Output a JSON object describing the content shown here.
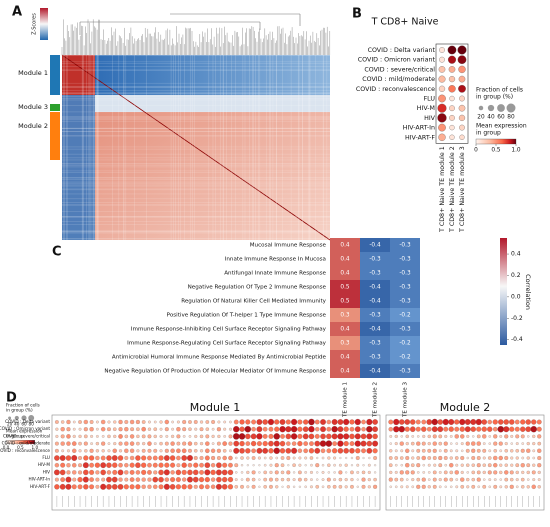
{
  "panel_labels": [
    "A",
    "B",
    "C",
    "D"
  ],
  "panel_a": {
    "colorbar_label": "Z-Scores",
    "modules": [
      "Module 1",
      "Module 3",
      "Module 2"
    ]
  },
  "panel_b": {
    "title": "T CD8+ Naive",
    "rows": [
      "COVID : Delta variant",
      "COVID : Omicron variant",
      "COVID : severe/critical",
      "COVID : mild/moderate",
      "COVID : reconvalescence",
      "FLU",
      "HIV-M",
      "HIV",
      "HIV-ART-In",
      "HIV-ART-F"
    ],
    "columns": [
      "T CD8+ Naive TE module 1",
      "T CD8+ Naive TE module 2",
      "T CD8+ Naive TE module 3"
    ],
    "fraction": [
      [
        30,
        70,
        75
      ],
      [
        30,
        60,
        70
      ],
      [
        40,
        40,
        50
      ],
      [
        45,
        35,
        40
      ],
      [
        35,
        50,
        55
      ],
      [
        55,
        25,
        30
      ],
      [
        75,
        30,
        40
      ],
      [
        80,
        30,
        35
      ],
      [
        55,
        25,
        30
      ],
      [
        50,
        25,
        25
      ]
    ],
    "mean": [
      [
        0.1,
        1.0,
        1.0
      ],
      [
        0.1,
        0.9,
        0.95
      ],
      [
        0.3,
        0.4,
        0.5
      ],
      [
        0.35,
        0.3,
        0.4
      ],
      [
        0.2,
        0.6,
        0.9
      ],
      [
        0.5,
        0.1,
        0.2
      ],
      [
        0.8,
        0.2,
        0.3
      ],
      [
        0.95,
        0.2,
        0.3
      ],
      [
        0.5,
        0.1,
        0.2
      ],
      [
        0.4,
        0.1,
        0.15
      ]
    ],
    "size_legend_title": [
      "Fraction of cells",
      "in group (%)"
    ],
    "size_ticks": [
      20,
      40,
      60,
      80
    ],
    "color_legend_title": [
      "Mean expression",
      "in group"
    ],
    "clim": [
      0,
      1
    ],
    "color_ticks": [
      0,
      0.5,
      {
        "value": 1,
        "label": "1.0"
      }
    ]
  },
  "panel_c": {
    "rows": [
      "Mucosal Immune Response",
      "Innate Immune Response In Mucosa",
      "Antifungal Innate Immune Response",
      "Negative Regulation Of Type 2 Immune Response",
      "Regulation Of Natural Killer Cell Mediated Immunity",
      "Positive Regulation Of T-helper 1 Type Immune Response",
      "Immune Response-Inhibiting Cell Surface Receptor Signaling Pathway",
      "Immune Response-Regulating Cell Surface Receptor Signaling Pathway",
      "Antimicrobial Humoral Immune Response Mediated By Antimicrobial Peptide",
      "Negative Regulation Of Production Of Molecular Mediator Of Immune Response"
    ],
    "columns": [
      "TE module 1",
      "TE module 2",
      "TE module 3"
    ],
    "values": [
      [
        0.4,
        -0.4,
        -0.3
      ],
      [
        0.4,
        -0.3,
        -0.3
      ],
      [
        0.4,
        -0.3,
        -0.3
      ],
      [
        0.5,
        -0.4,
        -0.3
      ],
      [
        0.5,
        -0.4,
        -0.3
      ],
      [
        0.3,
        -0.3,
        -0.2
      ],
      [
        0.4,
        -0.4,
        -0.3
      ],
      [
        0.3,
        -0.3,
        -0.2
      ],
      [
        0.4,
        -0.3,
        -0.2
      ],
      [
        0.4,
        -0.4,
        -0.3
      ]
    ],
    "colorbar_label": "Correlation",
    "clim": [
      -0.45,
      0.55
    ],
    "cticks": [
      0.4,
      0.2,
      {
        "value": 0,
        "label": "0.0"
      },
      -0.2,
      -0.4
    ]
  },
  "panel_d": {
    "titles": [
      "Module 1",
      "Module 2"
    ],
    "size_legend_title": [
      "Fraction of cells",
      "in group (%)"
    ],
    "size_ticks": [
      20,
      40,
      60,
      80
    ],
    "color_legend_title": [
      "Mean expression",
      "in group"
    ],
    "color_ticks": [
      {
        "value": 0,
        "label": "0.0"
      },
      0.5,
      {
        "value": 1,
        "label": "1.0"
      }
    ]
  }
}
